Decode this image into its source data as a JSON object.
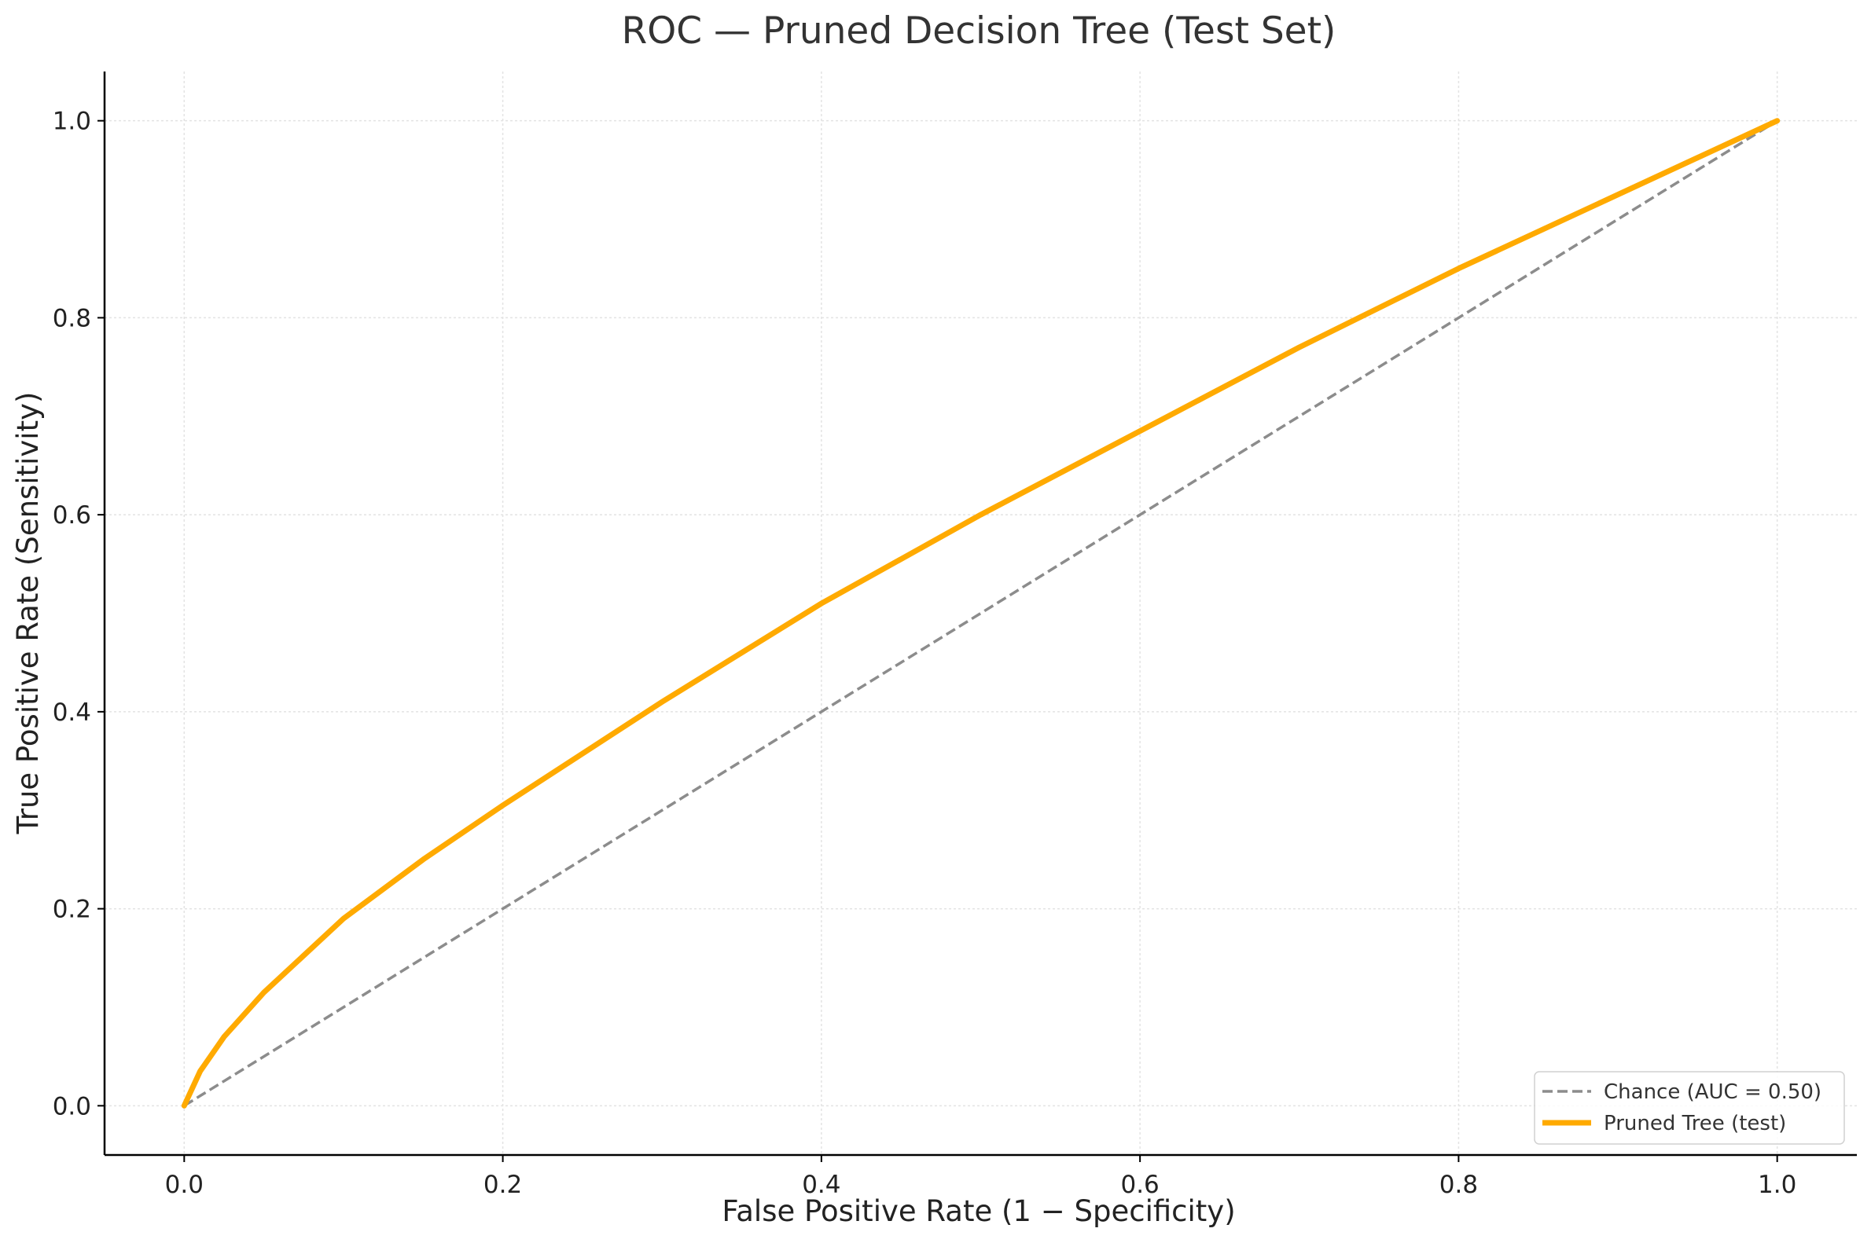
{
  "chart_data": {
    "type": "line",
    "title": "ROC — Pruned Decision Tree (Test Set)",
    "xlabel": "False Positive Rate (1 − Specificity)",
    "ylabel": "True Positive Rate (Sensitivity)",
    "xlim": [
      -0.05,
      1.05
    ],
    "ylim": [
      -0.05,
      1.05
    ],
    "xticks": [
      0.0,
      0.2,
      0.4,
      0.6,
      0.8,
      1.0
    ],
    "xtick_labels": [
      "0.0",
      "0.2",
      "0.4",
      "0.6",
      "0.8",
      "1.0"
    ],
    "yticks": [
      0.0,
      0.2,
      0.4,
      0.6,
      0.8,
      1.0
    ],
    "ytick_labels": [
      "0.0",
      "0.2",
      "0.4",
      "0.6",
      "0.8",
      "1.0"
    ],
    "grid": true,
    "legend_position": "bottom-right",
    "series": [
      {
        "name": "Chance (AUC = 0.50)",
        "style": "dashed",
        "color": "#8c8c8c",
        "x": [
          0.0,
          1.0
        ],
        "y": [
          0.0,
          1.0
        ]
      },
      {
        "name": "Pruned Tree (test)",
        "style": "solid",
        "color": "#FFAA00",
        "x": [
          0.0,
          0.01,
          0.025,
          0.05,
          0.1,
          0.15,
          0.2,
          0.3,
          0.4,
          0.5,
          0.6,
          0.7,
          0.8,
          0.9,
          1.0
        ],
        "y": [
          0.0,
          0.035,
          0.07,
          0.115,
          0.19,
          0.25,
          0.305,
          0.41,
          0.51,
          0.6,
          0.685,
          0.77,
          0.85,
          0.925,
          1.0
        ]
      }
    ]
  }
}
